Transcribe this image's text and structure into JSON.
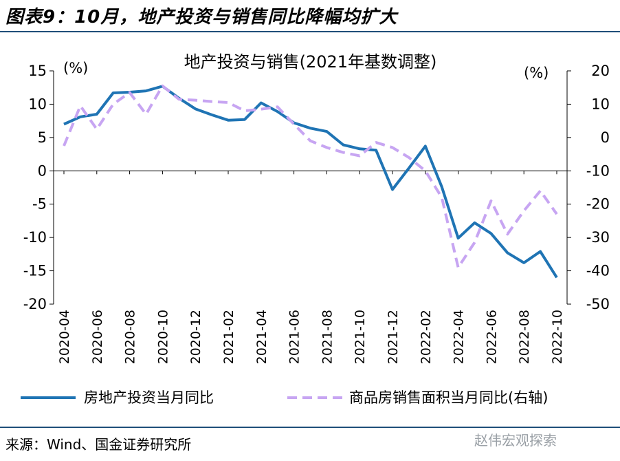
{
  "header": {
    "title": "图表9：10月，地产投资与销售同比降幅均扩大"
  },
  "footer": {
    "source": "来源：Wind、国金证券研究所",
    "watermark": "赵伟宏观探索"
  },
  "colors": {
    "investment": "#1f74b4",
    "sales": "#c7a5f2",
    "rule": "#1f4e79"
  },
  "chart_data": {
    "type": "line",
    "title": "地产投资与销售(2021年基数调整)",
    "left_unit": "(%)",
    "right_unit": "(%)",
    "ylim_left": [
      -20,
      15
    ],
    "ylim_right": [
      -50,
      20
    ],
    "yticks_left": [
      15,
      10,
      5,
      0,
      -5,
      -10,
      -15,
      -20
    ],
    "yticks_right": [
      20,
      10,
      0,
      -10,
      -20,
      -30,
      -40,
      -50
    ],
    "categories": [
      "2020-04",
      "2020-05",
      "2020-06",
      "2020-07",
      "2020-08",
      "2020-09",
      "2020-10",
      "2020-11",
      "2020-12",
      "2021-01",
      "2021-02",
      "2021-03",
      "2021-04",
      "2021-05",
      "2021-06",
      "2021-07",
      "2021-08",
      "2021-09",
      "2021-10",
      "2021-11",
      "2021-12",
      "2022-01",
      "2022-02",
      "2022-03",
      "2022-04",
      "2022-05",
      "2022-06",
      "2022-07",
      "2022-08",
      "2022-09",
      "2022-10"
    ],
    "tick_labels": [
      "2020-04",
      "2020-06",
      "2020-08",
      "2020-10",
      "2020-12",
      "2021-02",
      "2021-04",
      "2021-06",
      "2021-08",
      "2021-10",
      "2021-12",
      "2022-02",
      "2022-04",
      "2022-06",
      "2022-08",
      "2022-10"
    ],
    "series": [
      {
        "name": "房地产投资当月同比",
        "axis": "left",
        "style": "solid",
        "values": [
          7.0,
          8.1,
          8.5,
          11.7,
          11.8,
          12.0,
          12.7,
          10.9,
          9.3,
          8.4,
          7.6,
          7.7,
          10.2,
          8.9,
          7.2,
          6.4,
          5.9,
          3.9,
          3.3,
          3.1,
          -2.8,
          0.4,
          3.7,
          -2.4,
          -10.1,
          -7.8,
          -9.4,
          -12.3,
          -13.8,
          -12.1,
          -16.0
        ]
      },
      {
        "name": "商品房销售面积当月同比(右轴)",
        "axis": "right",
        "style": "dashed",
        "values": [
          -2.5,
          9.5,
          2.5,
          10.0,
          13.5,
          7.0,
          15.5,
          11.5,
          11.2,
          10.8,
          10.5,
          8.0,
          8.5,
          9.2,
          4.0,
          -1.0,
          -3.0,
          -4.5,
          -5.5,
          -1.5,
          -3.0,
          -6.0,
          -10.0,
          -18.0,
          -39.0,
          -31.5,
          -19.0,
          -29.0,
          -22.0,
          -16.0,
          -23.0
        ]
      }
    ]
  }
}
